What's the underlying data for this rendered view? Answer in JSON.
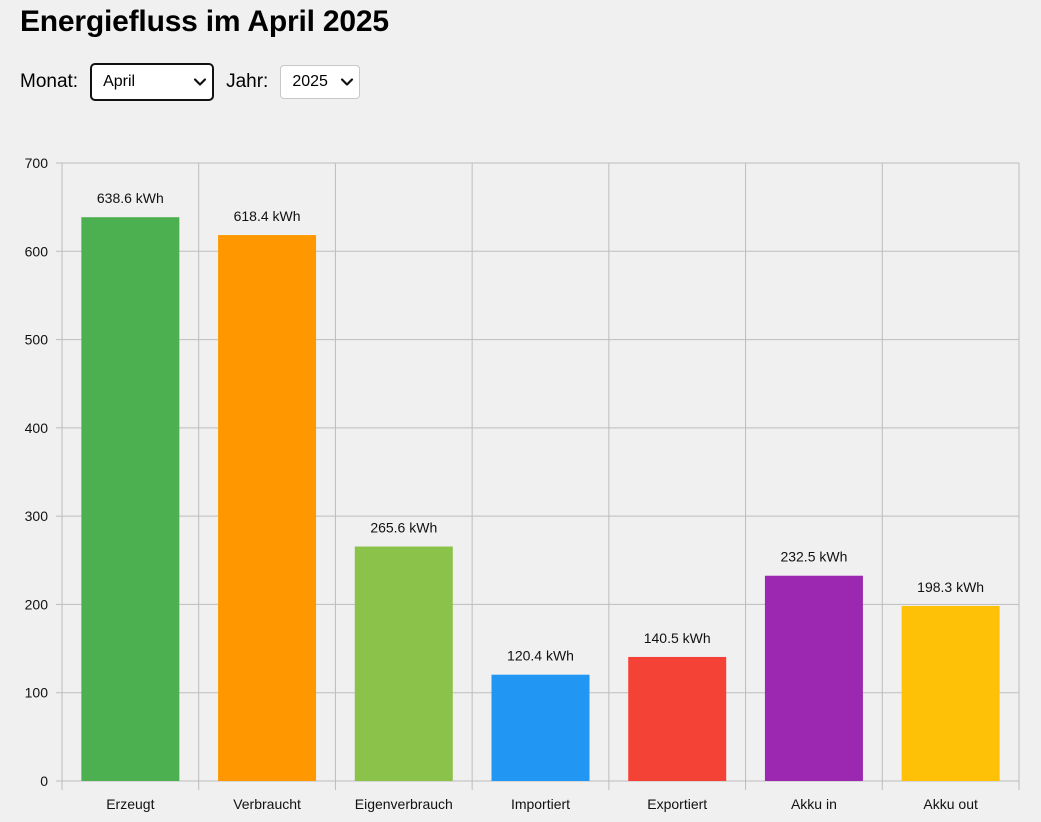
{
  "header": {
    "title": "Energiefluss im April 2025"
  },
  "controls": {
    "month_label": "Monat:",
    "month_value": "April",
    "year_label": "Jahr:",
    "year_value": "2025"
  },
  "chart_data": {
    "type": "bar",
    "title": "",
    "xlabel": "",
    "ylabel": "",
    "categories": [
      "Erzeugt",
      "Verbraucht",
      "Eigenverbrauch",
      "Importiert",
      "Exportiert",
      "Akku in",
      "Akku out"
    ],
    "values": [
      638.6,
      618.4,
      265.6,
      120.4,
      140.5,
      232.5,
      198.3
    ],
    "value_labels": [
      "638.6 kWh",
      "618.4 kWh",
      "265.6 kWh",
      "120.4 kWh",
      "140.5 kWh",
      "232.5 kWh",
      "198.3 kWh"
    ],
    "colors": [
      "#4caf50",
      "#ff9800",
      "#8bc34a",
      "#2196f3",
      "#f44336",
      "#9c27b0",
      "#ffc107"
    ],
    "ylim": [
      0,
      700
    ],
    "yticks": [
      0,
      100,
      200,
      300,
      400,
      500,
      600,
      700
    ],
    "grid": true,
    "legend": "none"
  }
}
